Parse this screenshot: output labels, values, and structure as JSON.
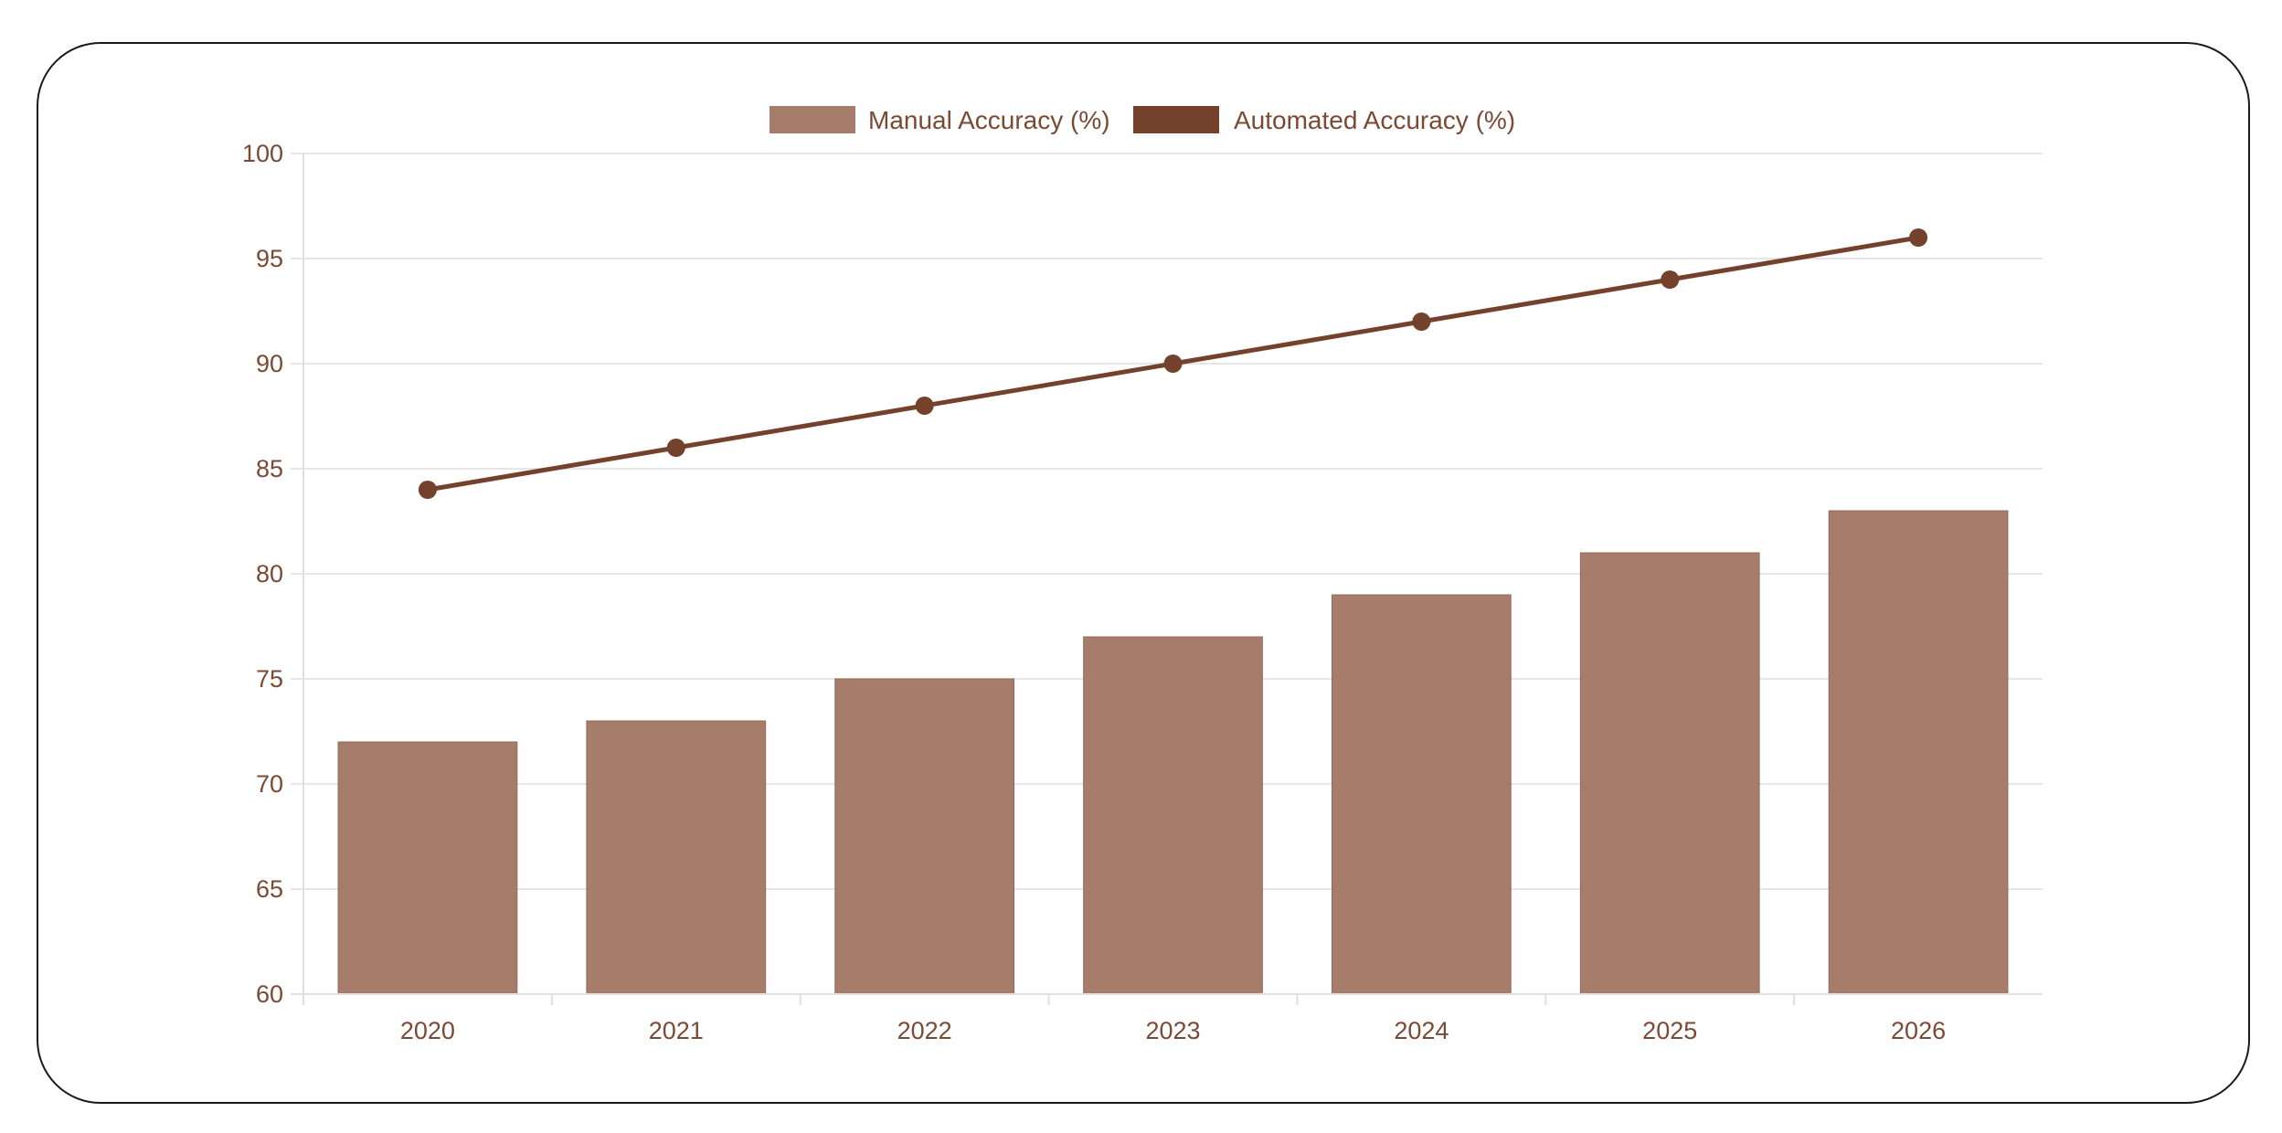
{
  "chart_data": {
    "type": "bar",
    "categories": [
      "2020",
      "2021",
      "2022",
      "2023",
      "2024",
      "2025",
      "2026"
    ],
    "series": [
      {
        "name": "Manual Accuracy (%)",
        "type": "bar",
        "color": "#a67c6a",
        "values": [
          72,
          73,
          75,
          77,
          79,
          81,
          83
        ]
      },
      {
        "name": "Automated Accuracy (%)",
        "type": "line",
        "color": "#74422c",
        "values": [
          84,
          86,
          88,
          90,
          92,
          94,
          96
        ]
      }
    ],
    "ylim": [
      60,
      100
    ],
    "yticks": [
      "60",
      "65",
      "70",
      "75",
      "80",
      "85",
      "90",
      "95",
      "100"
    ],
    "grid": true,
    "legend_position": "top-center"
  }
}
